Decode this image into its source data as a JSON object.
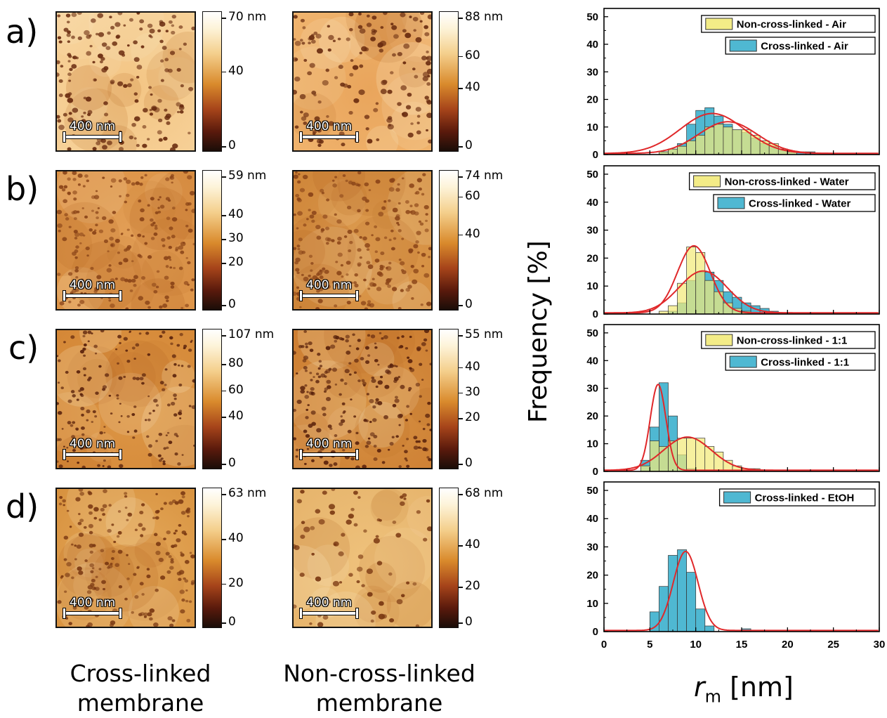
{
  "row_labels": [
    "a)",
    "b)",
    "c)",
    "d)"
  ],
  "scale_bar_label": "400 nm",
  "column_captions": [
    {
      "line1": "Cross-linked",
      "line2": "membrane"
    },
    {
      "line1": "Non-cross-linked",
      "line2": "membrane"
    }
  ],
  "colorbars": [
    [
      {
        "ticks": [
          "70 nm",
          "40",
          "0"
        ],
        "values": [
          70,
          40,
          0
        ],
        "max": 70
      },
      {
        "ticks": [
          "88 nm",
          "60",
          "40",
          "0"
        ],
        "values": [
          88,
          60,
          40,
          0
        ],
        "max": 88
      }
    ],
    [
      {
        "ticks": [
          "59 nm",
          "40",
          "30",
          "20",
          "0"
        ],
        "values": [
          59,
          40,
          30,
          20,
          0
        ],
        "max": 59
      },
      {
        "ticks": [
          "74 nm",
          "60",
          "40",
          "0"
        ],
        "values": [
          74,
          60,
          40,
          0
        ],
        "max": 74
      }
    ],
    [
      {
        "ticks": [
          "107 nm",
          "80",
          "60",
          "40",
          "0"
        ],
        "values": [
          107,
          80,
          60,
          40,
          0
        ],
        "max": 107
      },
      {
        "ticks": [
          "55 nm",
          "40",
          "30",
          "20",
          "0"
        ],
        "values": [
          55,
          40,
          30,
          20,
          0
        ],
        "max": 55
      }
    ],
    [
      {
        "ticks": [
          "63 nm",
          "40",
          "20",
          "0"
        ],
        "values": [
          63,
          40,
          20,
          0
        ],
        "max": 63
      },
      {
        "ticks": [
          "68 nm",
          "40",
          "20",
          "0"
        ],
        "values": [
          68,
          40,
          20,
          0
        ],
        "max": 68
      }
    ]
  ],
  "colors": {
    "cross_linked": "#4fb8d2",
    "non_cross_linked": "#f2ea7a",
    "fit": "#e0282a",
    "afm_light": "#fdf3d8",
    "afm_mid": "#d98a2c",
    "afm_dark": "#1a0d08"
  },
  "chart_data": [
    {
      "type": "bar",
      "panel": "a)",
      "x": [
        5.5,
        6.5,
        7.5,
        8.5,
        9.5,
        10.5,
        11.5,
        12.5,
        13.5,
        14.5,
        15.5,
        16.5,
        17.5,
        18.5,
        19.5,
        20.5,
        21.5,
        22.5
      ],
      "series": [
        {
          "name": "Non-cross-linked - Air",
          "values": [
            0,
            1,
            2,
            3,
            5,
            7,
            10,
            11,
            10,
            9,
            9,
            7,
            5,
            4,
            2,
            1,
            0,
            0
          ]
        },
        {
          "name": "Cross-linked - Air",
          "values": [
            0,
            1,
            2,
            4,
            11,
            16,
            17,
            14,
            11,
            9,
            8,
            6,
            4,
            3,
            2,
            1,
            1,
            1
          ]
        }
      ],
      "fit_peak_x": [
        11.8,
        13.5
      ],
      "fit_peak_y": [
        14.5,
        11.5
      ],
      "xlim": [
        0,
        30
      ],
      "ylim": [
        0,
        53
      ],
      "yticks": [
        0,
        10,
        20,
        30,
        40,
        50
      ]
    },
    {
      "type": "bar",
      "panel": "b)",
      "x": [
        6.5,
        7.5,
        8.5,
        9.5,
        10.5,
        11.5,
        12.5,
        13.5,
        14.5,
        15.5,
        16.5,
        17.5,
        18.5,
        19.5
      ],
      "series": [
        {
          "name": "Non-cross-linked - Water",
          "values": [
            1,
            3,
            11,
            24,
            22,
            12,
            8,
            4,
            2,
            1,
            0,
            0,
            0,
            0
          ]
        },
        {
          "name": "Cross-linked - Water",
          "values": [
            0,
            1,
            4,
            12,
            15,
            15,
            12,
            8,
            6,
            4,
            3,
            2,
            1,
            0
          ]
        }
      ],
      "fit_peak_x": [
        9.8,
        10.8
      ],
      "fit_peak_y": [
        24,
        15
      ],
      "xlim": [
        0,
        30
      ],
      "ylim": [
        0,
        53
      ],
      "yticks": [
        0,
        10,
        20,
        30,
        40,
        50
      ]
    },
    {
      "type": "bar",
      "panel": "c)",
      "x": [
        4.5,
        5.5,
        6.5,
        7.5,
        8.5,
        9.5,
        10.5,
        11.5,
        12.5,
        13.5,
        14.5,
        15.5,
        16.5
      ],
      "series": [
        {
          "name": "Non-cross-linked - 1:1",
          "values": [
            2,
            11,
            9,
            11,
            12,
            12,
            12,
            9,
            7,
            4,
            2,
            1,
            1
          ]
        },
        {
          "name": "Cross-linked - 1:1",
          "values": [
            4,
            16,
            32,
            20,
            6,
            1,
            0,
            0,
            0,
            0,
            0,
            0,
            0
          ]
        }
      ],
      "fit_peak_x": [
        5.9,
        9.1
      ],
      "fit_peak_y": [
        31,
        12
      ],
      "xlim": [
        0,
        30
      ],
      "ylim": [
        0,
        53
      ],
      "yticks": [
        0,
        10,
        20,
        30,
        40,
        50
      ]
    },
    {
      "type": "bar",
      "panel": "d)",
      "x": [
        5.5,
        6.5,
        7.5,
        8.5,
        9.5,
        10.5,
        11.5,
        15.5
      ],
      "series": [
        {
          "name": "Cross-linked - EtOH",
          "values": [
            7,
            16,
            27,
            29,
            21,
            8,
            2,
            1
          ]
        }
      ],
      "fit_peak_x": [
        8.9
      ],
      "fit_peak_y": [
        28
      ],
      "xlim": [
        0,
        30
      ],
      "ylim": [
        0,
        53
      ],
      "yticks": [
        0,
        10,
        20,
        30,
        40,
        50
      ]
    }
  ],
  "xticks": [
    0,
    5,
    10,
    15,
    20,
    25,
    30
  ],
  "ylabel": "Frequency [%]",
  "xlabel_symbol": "r",
  "xlabel_sub": "m",
  "xlabel_unit": " [nm]"
}
